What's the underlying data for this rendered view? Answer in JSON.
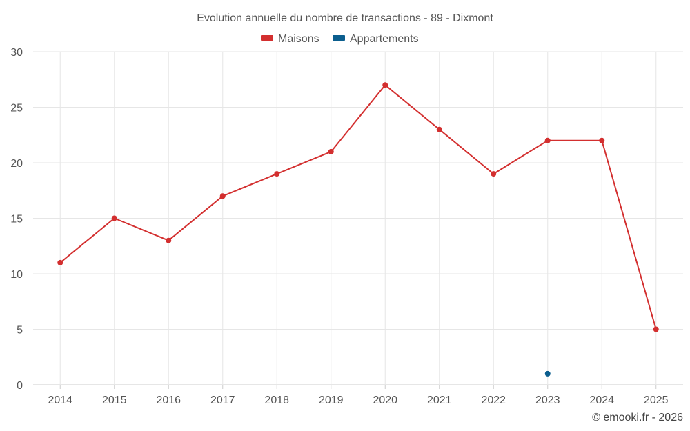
{
  "chart_data": {
    "type": "line",
    "title": "Evolution annuelle du nombre de transactions - 89 - Dixmont",
    "categories": [
      "2014",
      "2015",
      "2016",
      "2017",
      "2018",
      "2019",
      "2020",
      "2021",
      "2022",
      "2023",
      "2024",
      "2025"
    ],
    "series": [
      {
        "name": "Maisons",
        "color": "#d32f2f",
        "values": [
          11,
          15,
          13,
          17,
          19,
          21,
          27,
          23,
          19,
          22,
          22,
          5
        ]
      },
      {
        "name": "Appartements",
        "color": "#0b5e8e",
        "values": [
          null,
          null,
          null,
          null,
          null,
          null,
          null,
          null,
          null,
          1,
          null,
          null
        ]
      }
    ],
    "ylim": [
      0,
      30
    ],
    "yticks": [
      0,
      5,
      10,
      15,
      20,
      25,
      30
    ],
    "xlabel": "",
    "ylabel": "",
    "grid": true,
    "legend": "top-center"
  },
  "credit": "© emooki.fr - 2026"
}
